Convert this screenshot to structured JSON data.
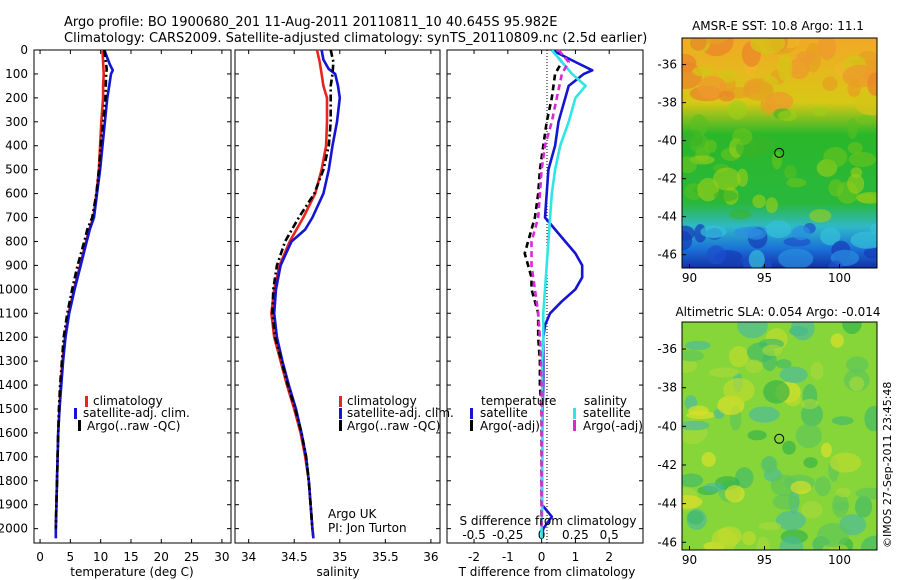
{
  "header": {
    "line1": "Argo profile: BO 1900680_201 11-Aug-2011 20110811_10 40.645S 95.982E",
    "line2": "Climatology: CARS2009. Satellite-adjusted climatology: synTS_20110809.nc (2.5d earlier)"
  },
  "colors": {
    "climatology": "#e8241c",
    "satellite": "#1414d2",
    "argo": "#000000",
    "sal_satellite": "#2ee6e6",
    "sal_argo": "#d62ad6"
  },
  "chart_data": [
    {
      "type": "line",
      "id": "temperature",
      "xlabel": "temperature (deg C)",
      "xlim": [
        -1,
        31.5
      ],
      "xticks": [
        0,
        5,
        10,
        15,
        20,
        25,
        30
      ],
      "ylim": [
        0,
        2060
      ],
      "yticks": [
        0,
        100,
        200,
        300,
        400,
        500,
        600,
        700,
        800,
        900,
        1000,
        1100,
        1200,
        1300,
        1400,
        1500,
        1600,
        1700,
        1800,
        1900,
        2000
      ],
      "inverted_y": true,
      "legend": {
        "position": "bottom-left",
        "entries": [
          "climatology",
          "satellite-adj. clim.",
          "Argo(..raw -QC)"
        ]
      },
      "series": [
        {
          "name": "climatology",
          "style": "solid",
          "depth": [
            0,
            50,
            100,
            150,
            200,
            300,
            400,
            500,
            600,
            700,
            750,
            800,
            900,
            1000,
            1100,
            1200,
            1300,
            1400,
            1500,
            1600,
            1700,
            1800,
            1900,
            2000,
            2040
          ],
          "values": [
            10.3,
            10.4,
            10.5,
            10.4,
            10.4,
            10.1,
            9.9,
            9.7,
            9.3,
            8.8,
            8.1,
            7.6,
            6.6,
            5.6,
            4.7,
            4.1,
            3.7,
            3.4,
            3.2,
            3.0,
            2.9,
            2.8,
            2.7,
            2.6,
            2.6
          ]
        },
        {
          "name": "satellite-adj. clim.",
          "style": "solid",
          "depth": [
            0,
            60,
            85,
            100,
            150,
            200,
            300,
            400,
            500,
            600,
            700,
            750,
            800,
            900,
            1000,
            1100,
            1200,
            1300,
            1400,
            1500,
            1600,
            1700,
            1800,
            1900,
            2000,
            2040
          ],
          "values": [
            10.6,
            11.5,
            12.0,
            11.7,
            11.4,
            11.1,
            10.7,
            10.3,
            9.9,
            9.4,
            8.9,
            8.2,
            7.7,
            6.7,
            5.7,
            4.8,
            4.2,
            3.8,
            3.5,
            3.2,
            3.0,
            2.9,
            2.8,
            2.7,
            2.6,
            2.6
          ]
        },
        {
          "name": "Argo(..raw -QC)",
          "style": "dash-dot",
          "depth": [
            0,
            80,
            100,
            200,
            300,
            400,
            500,
            600,
            700,
            750,
            800,
            900,
            1000,
            1100,
            1200,
            1300,
            1400,
            1500,
            1600,
            1700,
            1800,
            1900,
            2000
          ],
          "values": [
            10.6,
            11.0,
            10.9,
            10.8,
            10.4,
            10.0,
            9.7,
            9.3,
            8.6,
            7.8,
            7.3,
            6.2,
            5.3,
            4.5,
            3.9,
            3.6,
            3.3,
            3.1,
            3.0,
            2.9,
            2.8,
            2.7,
            2.6
          ]
        }
      ]
    },
    {
      "type": "line",
      "id": "salinity",
      "xlabel": "salinity",
      "xlim": [
        33.85,
        36.1
      ],
      "xticks": [
        34,
        34.5,
        35,
        35.5,
        36
      ],
      "ylim": [
        0,
        2060
      ],
      "inverted_y": true,
      "legend": {
        "position": "bottom-right",
        "entries": [
          "climatology",
          "satellite-adj. clim.",
          "Argo(..raw -QC)"
        ]
      },
      "annotation": [
        "Argo UK",
        "PI: Jon Turton"
      ],
      "series": [
        {
          "name": "climatology",
          "style": "solid",
          "depth": [
            0,
            50,
            100,
            150,
            200,
            300,
            400,
            500,
            600,
            700,
            800,
            900,
            1000,
            1100,
            1200,
            1300,
            1400,
            1500,
            1600,
            1700,
            1800,
            1900,
            2000,
            2040
          ],
          "values": [
            34.75,
            34.78,
            34.8,
            34.82,
            34.86,
            34.86,
            34.85,
            34.8,
            34.73,
            34.6,
            34.45,
            34.34,
            34.28,
            34.25,
            34.28,
            34.35,
            34.42,
            34.5,
            34.57,
            34.62,
            34.66,
            34.68,
            34.7,
            34.71
          ]
        },
        {
          "name": "satellite-adj. clim.",
          "style": "solid",
          "depth": [
            0,
            40,
            80,
            100,
            150,
            200,
            300,
            400,
            500,
            600,
            700,
            750,
            800,
            900,
            1000,
            1100,
            1200,
            1300,
            1400,
            1500,
            1600,
            1700,
            1800,
            1900,
            2000,
            2040
          ],
          "values": [
            34.8,
            34.82,
            34.88,
            34.95,
            34.98,
            35.0,
            34.97,
            34.92,
            34.88,
            34.82,
            34.7,
            34.62,
            34.47,
            34.35,
            34.3,
            34.28,
            34.31,
            34.37,
            34.44,
            34.52,
            34.58,
            34.63,
            34.66,
            34.68,
            34.7,
            34.71
          ]
        },
        {
          "name": "Argo(..raw -QC)",
          "style": "dash-dot",
          "depth": [
            0,
            50,
            100,
            150,
            200,
            300,
            400,
            500,
            600,
            700,
            800,
            900,
            1000,
            1100,
            1200,
            1300,
            1400,
            1500,
            1600,
            1700,
            1800,
            1900,
            2000
          ],
          "values": [
            34.9,
            34.93,
            34.92,
            34.9,
            34.9,
            34.9,
            34.88,
            34.82,
            34.72,
            34.55,
            34.4,
            34.31,
            34.27,
            34.26,
            34.29,
            34.36,
            34.43,
            34.51,
            34.58,
            34.63,
            34.66,
            34.68,
            34.7
          ]
        }
      ]
    },
    {
      "type": "line",
      "id": "difference",
      "xlabel": "T difference from climatology",
      "xlabel_top": "S difference from climatology",
      "xlim": [
        -2.8,
        3.0
      ],
      "xticks": [
        -2,
        -1,
        0,
        1,
        2
      ],
      "xticks_top": {
        "labels": [
          "-0.5",
          "-0.25",
          "0",
          "0.25",
          "0.5"
        ],
        "values": [
          -2,
          -1,
          0,
          1,
          2
        ]
      },
      "ylim": [
        0,
        2060
      ],
      "inverted_y": true,
      "legend": {
        "position": "bottom",
        "temperature_title": "temperature",
        "salinity_title": "salinity",
        "entries": [
          "satellite",
          "Argo(-adj)",
          "satellite",
          "Argo(-adj)"
        ]
      },
      "series": [
        {
          "name": "satellite",
          "group": "temperature",
          "style": "solid",
          "depth": [
            0,
            50,
            85,
            100,
            150,
            200,
            250,
            300,
            400,
            500,
            600,
            700,
            800,
            850,
            900,
            950,
            1000,
            1050,
            1100,
            1150,
            1200,
            1300,
            1400,
            1500,
            1600,
            1700,
            1800,
            1900,
            1950,
            2000,
            2040
          ],
          "values": [
            0.3,
            1.0,
            1.5,
            1.25,
            0.8,
            0.7,
            0.6,
            0.5,
            0.4,
            0.2,
            0.15,
            0.1,
            0.7,
            1.0,
            1.2,
            1.2,
            1.0,
            0.6,
            0.25,
            0.1,
            0.05,
            0.05,
            0.05,
            0.03,
            0.02,
            0.02,
            0.01,
            0.01,
            0.3,
            0.05,
            0.0
          ]
        },
        {
          "name": "Argo(-adj)",
          "group": "temperature",
          "style": "dashed",
          "depth": [
            0,
            50,
            100,
            200,
            300,
            400,
            500,
            600,
            700,
            750,
            800,
            850,
            900,
            950,
            1000,
            1050,
            1100,
            1200,
            1300,
            1400,
            1500,
            1600,
            1700,
            1800,
            1900,
            2000
          ],
          "values": [
            0.3,
            0.6,
            0.4,
            0.3,
            0.15,
            0.05,
            -0.05,
            -0.1,
            -0.2,
            -0.3,
            -0.4,
            -0.5,
            -0.4,
            -0.3,
            -0.3,
            -0.2,
            -0.1,
            -0.1,
            -0.05,
            -0.05,
            0.0,
            0.0,
            0.0,
            0.0,
            0.0,
            0.0
          ]
        },
        {
          "name": "satellite",
          "group": "salinity",
          "style": "solid",
          "depth": [
            0,
            50,
            100,
            150,
            200,
            300,
            400,
            500,
            600,
            700,
            800,
            900,
            1000,
            1100,
            1200,
            1300,
            1400,
            1500,
            1600,
            1700,
            1800,
            1900,
            2000,
            2040
          ],
          "values": [
            0.3,
            0.6,
            0.9,
            1.3,
            1.0,
            0.8,
            0.55,
            0.4,
            0.3,
            0.25,
            0.2,
            0.15,
            0.1,
            0.05,
            0.05,
            0.02,
            0.02,
            0.02,
            0.02,
            0.02,
            0.02,
            0.02,
            0.0,
            0.0
          ]
        },
        {
          "name": "Argo(-adj)",
          "group": "salinity",
          "style": "dashed",
          "depth": [
            0,
            50,
            100,
            200,
            300,
            400,
            500,
            600,
            700,
            750,
            800,
            850,
            900,
            950,
            1000,
            1050,
            1100,
            1200,
            1300,
            1400,
            1500,
            1600,
            1700,
            1800,
            1900,
            2000
          ],
          "values": [
            0.5,
            0.8,
            0.6,
            0.45,
            0.3,
            0.1,
            0.0,
            -0.05,
            -0.1,
            -0.2,
            -0.3,
            -0.3,
            -0.3,
            -0.25,
            -0.2,
            -0.15,
            -0.1,
            -0.05,
            -0.02,
            0.0,
            0.0,
            0.0,
            0.0,
            0.0,
            0.0,
            0.0
          ]
        }
      ]
    },
    {
      "type": "heatmap",
      "id": "sst-map",
      "title": "AMSR-E SST: 10.8 Argo: 11.1",
      "xlim": [
        89.5,
        102.5
      ],
      "ylim": [
        -46.7,
        -34.6
      ],
      "xticks": [
        90,
        95,
        100
      ],
      "yticks": [
        -36,
        -38,
        -40,
        -42,
        -44,
        -46
      ],
      "marker": {
        "lon": 95.982,
        "lat": -40.645
      }
    },
    {
      "type": "heatmap",
      "id": "sla-map",
      "title": "Altimetric SLA: 0.054 Argo: -0.014",
      "xlim": [
        89.5,
        102.5
      ],
      "ylim": [
        -46.4,
        -34.6
      ],
      "xticks": [
        90,
        95,
        100
      ],
      "yticks": [
        -36,
        -38,
        -40,
        -42,
        -44,
        -46
      ],
      "marker": {
        "lon": 95.982,
        "lat": -40.645
      }
    }
  ],
  "side_note": "©IMOS 27-Sep-2011 23:45:48"
}
